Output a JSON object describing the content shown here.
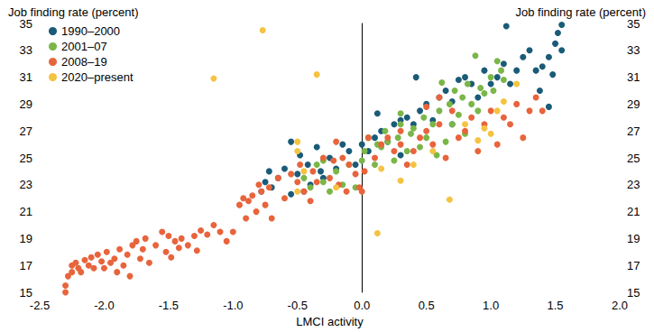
{
  "chart_data": {
    "type": "scatter",
    "xlabel": "LMCI activity",
    "ylabel": "Job finding rate (percent)",
    "y2label": "Job finding rate (percent)",
    "xlim": [
      -2.5,
      2.0
    ],
    "xticks": [
      -2.5,
      {
        "value": -2.0,
        "label": "-2.0"
      },
      -1.5,
      {
        "value": -1.0,
        "label": "-1.0"
      },
      -0.5,
      {
        "value": 0,
        "label": "0.0"
      },
      0.5,
      {
        "value": 1.0,
        "label": "1.0"
      },
      1.5,
      {
        "value": 2.0,
        "label": "2.0"
      }
    ],
    "ylim": [
      15,
      35
    ],
    "yticks": [
      15,
      17,
      19,
      21,
      23,
      25,
      27,
      29,
      31,
      33,
      35
    ],
    "y2lim": [
      15,
      35
    ],
    "y2ticks": [
      15,
      17,
      19,
      21,
      23,
      25,
      27,
      29,
      31,
      33,
      35
    ],
    "grid": false,
    "legend": "upper left",
    "series": [
      {
        "name": "1990–2000",
        "color": "#1a5b78",
        "marker": "circle",
        "x": [
          -0.78,
          -0.75,
          -0.72,
          -0.7,
          -0.65,
          -0.6,
          -0.55,
          -0.5,
          -0.48,
          -0.45,
          -0.42,
          -0.4,
          -0.35,
          -0.32,
          -0.3,
          -0.25,
          -0.2,
          -0.15,
          -0.1,
          -0.05,
          0.0,
          0.05,
          0.1,
          0.12,
          0.15,
          0.2,
          0.25,
          0.3,
          0.35,
          0.4,
          0.42,
          0.45,
          0.5,
          0.55,
          0.6,
          0.65,
          0.7,
          0.75,
          0.8,
          0.85,
          0.9,
          0.95,
          1.0,
          1.05,
          1.1,
          1.12,
          1.15,
          1.2,
          1.25,
          1.3,
          1.35,
          1.4,
          1.45,
          1.5,
          1.52,
          1.55,
          1.55,
          1.45,
          1.48,
          1.38,
          0.7,
          0.3,
          -0.55
        ],
        "values": [
          22.5,
          23.2,
          24.0,
          22.8,
          23.5,
          24.2,
          22.3,
          23.8,
          25.2,
          22.5,
          24.5,
          23.0,
          25.8,
          24.0,
          23.5,
          25.0,
          24.2,
          26.0,
          25.5,
          24.5,
          26.0,
          25.5,
          26.5,
          28.3,
          27.0,
          26.2,
          27.5,
          27.8,
          28.0,
          27.5,
          31.0,
          28.5,
          29.0,
          27.8,
          29.5,
          30.0,
          29.2,
          30.8,
          31.0,
          30.5,
          29.5,
          31.5,
          30.5,
          31.0,
          32.0,
          34.8,
          30.5,
          31.5,
          32.5,
          33.0,
          31.5,
          31.8,
          32.5,
          33.5,
          34.3,
          34.9,
          33.0,
          28.8,
          31.2,
          30.0,
          27.5,
          25.2,
          26.2
        ]
      },
      {
        "name": "2001–07",
        "color": "#7ab648",
        "marker": "circle",
        "x": [
          -0.45,
          -0.4,
          -0.35,
          -0.3,
          -0.25,
          -0.2,
          -0.15,
          -0.1,
          -0.05,
          0.0,
          0.02,
          0.05,
          0.1,
          0.12,
          0.15,
          0.18,
          0.2,
          0.25,
          0.28,
          0.3,
          0.35,
          0.38,
          0.4,
          0.45,
          0.48,
          0.5,
          0.55,
          0.58,
          0.6,
          0.65,
          0.68,
          0.7,
          0.72,
          0.75,
          0.78,
          0.8,
          0.82,
          0.85,
          0.88,
          0.9,
          0.92,
          0.95,
          1.0,
          1.02,
          1.05,
          1.08,
          1.1,
          0.62,
          0.3,
          -0.3
        ],
        "values": [
          23.5,
          22.8,
          24.5,
          23.2,
          22.5,
          24.0,
          23.0,
          24.5,
          22.8,
          24.8,
          25.5,
          26.5,
          24.5,
          26.0,
          25.8,
          27.0,
          26.2,
          24.8,
          26.5,
          27.5,
          25.5,
          26.8,
          27.2,
          25.8,
          28.0,
          26.5,
          27.5,
          25.2,
          28.5,
          26.2,
          29.0,
          27.5,
          30.0,
          28.2,
          29.5,
          26.8,
          30.5,
          29.0,
          32.6,
          28.5,
          30.2,
          29.8,
          31.0,
          30.0,
          32.2,
          31.5,
          30.8,
          30.6,
          28.3,
          24.8
        ]
      },
      {
        "name": "2008–19",
        "color": "#e8643c",
        "marker": "circle",
        "x": [
          -2.3,
          -2.3,
          -2.28,
          -2.25,
          -2.25,
          -2.22,
          -2.2,
          -2.18,
          -2.15,
          -2.12,
          -2.1,
          -2.08,
          -2.05,
          -2.02,
          -2.0,
          -1.98,
          -1.95,
          -1.92,
          -1.9,
          -1.88,
          -1.85,
          -1.82,
          -1.8,
          -1.78,
          -1.75,
          -1.72,
          -1.7,
          -1.68,
          -1.65,
          -1.6,
          -1.55,
          -1.52,
          -1.5,
          -1.48,
          -1.45,
          -1.42,
          -1.4,
          -1.35,
          -1.3,
          -1.28,
          -1.25,
          -1.2,
          -1.15,
          -1.1,
          -1.05,
          -1.0,
          -0.95,
          -0.92,
          -0.9,
          -0.88,
          -0.85,
          -0.82,
          -0.8,
          -0.78,
          -0.75,
          -0.72,
          -0.7,
          -0.65,
          -0.6,
          -0.55,
          -0.5,
          -0.48,
          -0.45,
          -0.4,
          -0.38,
          -0.35,
          -0.3,
          -0.25,
          -0.22,
          -0.2,
          -0.18,
          -0.15,
          -0.12,
          -0.1,
          -0.05,
          -0.02,
          0.0,
          0.02,
          0.05,
          0.1,
          0.15,
          0.2,
          0.25,
          0.3,
          0.35,
          0.4,
          0.45,
          0.5,
          0.55,
          0.6,
          0.65,
          0.7,
          0.75,
          0.8,
          0.85,
          0.9,
          0.95,
          1.0,
          1.05,
          1.1,
          1.15,
          1.2,
          1.25,
          1.3,
          1.35,
          1.4,
          0.5,
          0.6,
          0.3
        ],
        "values": [
          15.5,
          15.0,
          16.2,
          17.0,
          16.5,
          17.2,
          16.8,
          16.5,
          17.4,
          17.0,
          17.6,
          16.8,
          17.8,
          17.3,
          16.8,
          18.0,
          17.2,
          17.5,
          16.5,
          18.2,
          17.0,
          17.8,
          16.2,
          18.5,
          18.8,
          17.5,
          18.2,
          19.0,
          17.2,
          18.5,
          19.5,
          18.0,
          19.2,
          17.6,
          18.8,
          18.3,
          19.0,
          18.5,
          19.2,
          18.1,
          19.6,
          19.3,
          20.0,
          19.5,
          18.8,
          19.5,
          21.5,
          22.0,
          20.5,
          21.8,
          22.2,
          21.0,
          23.0,
          22.5,
          21.5,
          22.8,
          20.5,
          23.5,
          22.0,
          23.8,
          23.2,
          24.5,
          22.5,
          21.8,
          24.0,
          23.2,
          25.0,
          23.5,
          24.8,
          26.2,
          23.0,
          25.0,
          22.5,
          24.5,
          23.8,
          22.8,
          22.5,
          24.0,
          26.5,
          25.0,
          26.0,
          26.5,
          25.5,
          26.0,
          24.5,
          25.5,
          26.5,
          27.0,
          26.0,
          27.5,
          25.0,
          28.5,
          26.5,
          27.0,
          28.0,
          25.5,
          27.5,
          28.5,
          26.0,
          28.0,
          27.5,
          29.0,
          26.5,
          28.5,
          29.5,
          28.5,
          28.8,
          29.5,
          27.0
        ]
      },
      {
        "name": "2020–present",
        "color": "#f5c342",
        "marker": "circle",
        "x": [
          -0.77,
          -1.15,
          -0.35,
          -0.5,
          -0.5,
          -0.45,
          -0.5,
          0.12,
          0.68,
          0.3,
          0.15,
          0.4,
          0.55,
          0.9,
          0.95,
          1.0,
          1.05,
          1.1,
          1.2,
          0.8,
          -0.2
        ],
        "values": [
          34.5,
          30.9,
          31.2,
          26.2,
          25.5,
          24.0,
          22.5,
          19.4,
          21.9,
          23.3,
          24.2,
          24.5,
          25.5,
          26.3,
          27.2,
          26.8,
          28.5,
          29.2,
          30.5,
          27.5,
          22.8
        ]
      }
    ]
  }
}
